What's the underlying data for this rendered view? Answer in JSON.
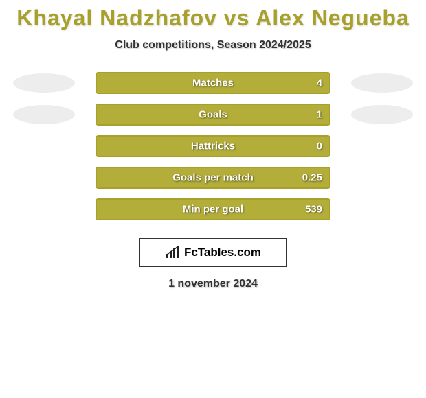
{
  "background_color": "#ffffff",
  "title": {
    "text": "Khayal Nadzhafov vs Alex Negueba",
    "color": "#a7a02b",
    "fontsize": 32
  },
  "subtitle": {
    "text": "Club competitions, Season 2024/2025",
    "color": "#333333",
    "fontsize": 16
  },
  "bar_border_color": "#a7a02b",
  "bar_fill_color": "#b3ad3a",
  "ellipse_color": "#ededed",
  "stats": [
    {
      "label": "Matches",
      "value": "4",
      "fill_pct": 100,
      "show_ellipses": true
    },
    {
      "label": "Goals",
      "value": "1",
      "fill_pct": 100,
      "show_ellipses": true
    },
    {
      "label": "Hattricks",
      "value": "0",
      "fill_pct": 100,
      "show_ellipses": false
    },
    {
      "label": "Goals per match",
      "value": "0.25",
      "fill_pct": 100,
      "show_ellipses": false
    },
    {
      "label": "Min per goal",
      "value": "539",
      "fill_pct": 100,
      "show_ellipses": false
    }
  ],
  "logo": {
    "text": "FcTables.com",
    "icon_name": "barchart-icon",
    "border_color": "#333333"
  },
  "date": {
    "text": "1 november 2024",
    "color": "#333333",
    "fontsize": 16
  }
}
